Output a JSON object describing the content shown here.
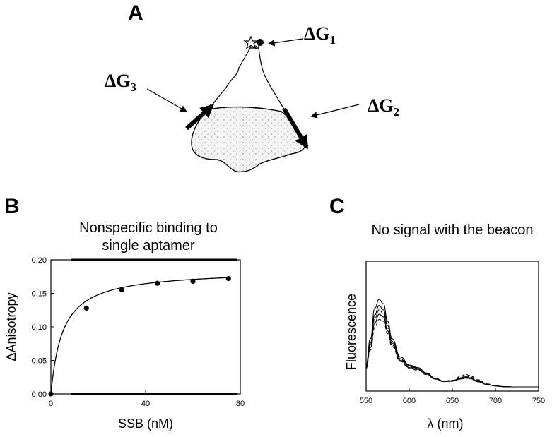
{
  "panels": {
    "a": {
      "letter": "A",
      "labels": {
        "dg1": "ΔG",
        "dg1_sub": "1",
        "dg2": "ΔG",
        "dg2_sub": "2",
        "dg3": "ΔG",
        "dg3_sub": "3"
      }
    },
    "b": {
      "letter": "B",
      "title_line1": "Nonspecific binding to",
      "title_line2": "single aptamer"
    },
    "c": {
      "letter": "C",
      "title": "No signal with the beacon"
    }
  },
  "chart_data": [
    {
      "type": "scatter",
      "panel": "B",
      "title": "Nonspecific binding to single aptamer",
      "xlabel": "SSB (nM)",
      "ylabel": "ΔAnisotropy",
      "xlim": [
        0,
        80
      ],
      "ylim": [
        0,
        0.2
      ],
      "xticks": [
        0,
        40,
        80
      ],
      "yticks": [
        0.0,
        0.05,
        0.1,
        0.15,
        0.2
      ],
      "xtick_labels": [
        "0",
        "40",
        "80"
      ],
      "ytick_labels": [
        "0.00",
        "0.05",
        "0.10",
        "0.15",
        "0.20"
      ],
      "points": {
        "x": [
          0,
          15,
          30,
          45,
          60,
          75
        ],
        "y": [
          0.0,
          0.128,
          0.155,
          0.165,
          0.168,
          0.172
        ]
      },
      "fit": {
        "model": "hyperbolic",
        "bmax": 0.185,
        "kd": 5
      },
      "grid": false
    },
    {
      "type": "line",
      "panel": "C",
      "title": "No signal with the beacon",
      "xlabel": "λ (nm)",
      "ylabel": "Fluorescence",
      "xlim": [
        550,
        750
      ],
      "xticks": [
        550,
        600,
        650,
        700,
        750
      ],
      "xtick_labels": [
        "550",
        "600",
        "650",
        "700",
        "750"
      ],
      "yticks_shown": false,
      "grid": false,
      "x": [
        550,
        555,
        560,
        565,
        570,
        575,
        580,
        590,
        600,
        610,
        620,
        630,
        640,
        650,
        660,
        665,
        670,
        680,
        690,
        700,
        710,
        720,
        750
      ],
      "series": [
        {
          "style": "solid",
          "values": [
            0.25,
            0.55,
            0.9,
            1.0,
            0.95,
            0.75,
            0.55,
            0.34,
            0.25,
            0.22,
            0.16,
            0.1,
            0.065,
            0.07,
            0.1,
            0.115,
            0.105,
            0.065,
            0.03,
            0.012,
            0.003,
            0.0,
            0.0
          ]
        },
        {
          "style": "solid",
          "values": [
            0.24,
            0.5,
            0.82,
            0.93,
            0.88,
            0.7,
            0.52,
            0.32,
            0.24,
            0.21,
            0.15,
            0.095,
            0.062,
            0.065,
            0.095,
            0.11,
            0.1,
            0.06,
            0.028,
            0.011,
            0.003,
            0.0,
            0.0
          ]
        },
        {
          "style": "dashed",
          "values": [
            0.23,
            0.48,
            0.78,
            0.88,
            0.84,
            0.67,
            0.5,
            0.31,
            0.23,
            0.205,
            0.15,
            0.095,
            0.065,
            0.075,
            0.12,
            0.145,
            0.13,
            0.08,
            0.035,
            0.013,
            0.003,
            0.0,
            0.0
          ]
        },
        {
          "style": "solid",
          "values": [
            0.22,
            0.45,
            0.73,
            0.83,
            0.8,
            0.64,
            0.48,
            0.3,
            0.22,
            0.2,
            0.145,
            0.09,
            0.06,
            0.065,
            0.09,
            0.1,
            0.095,
            0.058,
            0.027,
            0.01,
            0.002,
            0.0,
            0.0
          ]
        },
        {
          "style": "dashed",
          "values": [
            0.21,
            0.42,
            0.68,
            0.77,
            0.75,
            0.61,
            0.46,
            0.29,
            0.21,
            0.19,
            0.14,
            0.09,
            0.062,
            0.07,
            0.105,
            0.125,
            0.115,
            0.07,
            0.03,
            0.011,
            0.002,
            0.0,
            0.0
          ]
        }
      ]
    }
  ]
}
